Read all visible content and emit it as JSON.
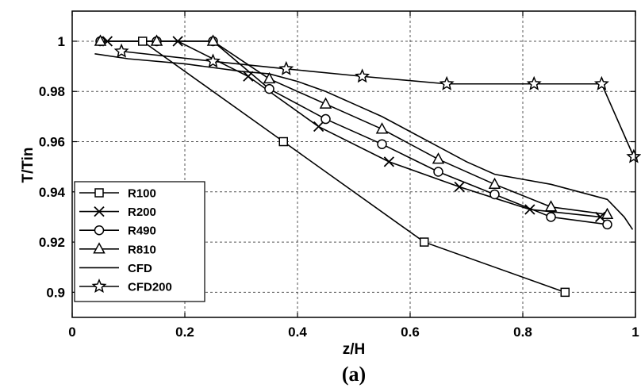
{
  "caption": "(a)",
  "chart_data": {
    "type": "line",
    "title": "",
    "xlabel": "z/H",
    "ylabel": "T/Tin",
    "xlim": [
      0,
      1
    ],
    "ylim": [
      0.89,
      1.012
    ],
    "xticks": [
      "0",
      "0.2",
      "0.4",
      "0.6",
      "0.8",
      "1"
    ],
    "yticks": [
      "0.9",
      "0.92",
      "0.94",
      "0.96",
      "0.98",
      "1"
    ],
    "grid": true,
    "legend_position": "bottom-left",
    "series": [
      {
        "name": "R100",
        "marker": "square",
        "x": [
          0.125,
          0.375,
          0.625,
          0.875
        ],
        "y": [
          1.0,
          0.96,
          0.92,
          0.9
        ]
      },
      {
        "name": "R200",
        "marker": "x",
        "x": [
          0.0625,
          0.1875,
          0.3125,
          0.4375,
          0.5625,
          0.6875,
          0.8125,
          0.9375
        ],
        "y": [
          1.0,
          1.0,
          0.986,
          0.966,
          0.952,
          0.942,
          0.933,
          0.93
        ]
      },
      {
        "name": "R490",
        "marker": "circle",
        "x": [
          0.05,
          0.15,
          0.25,
          0.35,
          0.45,
          0.55,
          0.65,
          0.75,
          0.85,
          0.95
        ],
        "y": [
          1.0,
          1.0,
          1.0,
          0.981,
          0.969,
          0.959,
          0.948,
          0.939,
          0.93,
          0.927
        ]
      },
      {
        "name": "R810",
        "marker": "triangle",
        "x": [
          0.05,
          0.15,
          0.25,
          0.35,
          0.45,
          0.55,
          0.65,
          0.75,
          0.85,
          0.95
        ],
        "y": [
          1.0,
          1.0,
          1.0,
          0.985,
          0.975,
          0.965,
          0.953,
          0.943,
          0.934,
          0.931
        ]
      },
      {
        "name": "CFD",
        "marker": "none",
        "x": [
          0.04,
          0.1,
          0.2,
          0.3,
          0.35,
          0.4,
          0.45,
          0.5,
          0.55,
          0.6,
          0.65,
          0.7,
          0.75,
          0.8,
          0.85,
          0.9,
          0.95,
          0.98,
          0.995
        ],
        "y": [
          0.995,
          0.993,
          0.991,
          0.988,
          0.987,
          0.984,
          0.98,
          0.975,
          0.97,
          0.964,
          0.958,
          0.952,
          0.947,
          0.945,
          0.943,
          0.94,
          0.937,
          0.93,
          0.925
        ]
      },
      {
        "name": "CFD200",
        "marker": "star",
        "x": [
          0.0875,
          0.25,
          0.38,
          0.515,
          0.665,
          0.82,
          0.94,
          0.997
        ],
        "y": [
          0.996,
          0.992,
          0.989,
          0.986,
          0.983,
          0.983,
          0.983,
          0.954
        ]
      }
    ]
  }
}
